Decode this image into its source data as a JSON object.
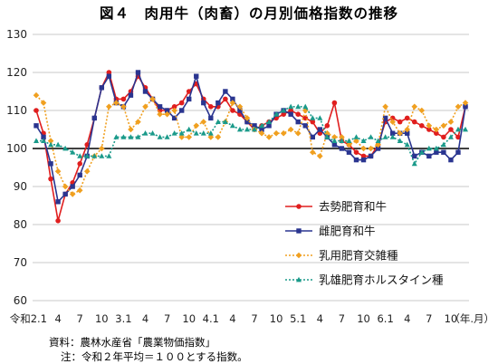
{
  "title": "図４　肉用牛（肉畜）の月別価格指数の推移",
  "source": "資料：農林水産省「農業物価指数」",
  "note": "注：令和２年平均＝１００とする指数。",
  "chart_data": {
    "type": "line",
    "title": "図４　肉用牛（肉畜）の月別価格指数の推移",
    "ylim": [
      60,
      130
    ],
    "yticks": [
      60,
      70,
      80,
      90,
      100,
      110,
      120,
      130
    ],
    "reference_line": 100,
    "x_unit_label": "（年.月）",
    "x_tick_labels": [
      "令和2.1",
      "4",
      "7",
      "10",
      "3.1",
      "4",
      "7",
      "10",
      "4.1",
      "4",
      "7",
      "10",
      "5.1",
      "4",
      "7",
      "10",
      "6.1",
      "4",
      "7",
      "10"
    ],
    "x": [
      "2.1",
      "2.2",
      "2.3",
      "2.4",
      "2.5",
      "2.6",
      "2.7",
      "2.8",
      "2.9",
      "2.10",
      "2.11",
      "2.12",
      "3.1",
      "3.2",
      "3.3",
      "3.4",
      "3.5",
      "3.6",
      "3.7",
      "3.8",
      "3.9",
      "3.10",
      "3.11",
      "3.12",
      "4.1",
      "4.2",
      "4.3",
      "4.4",
      "4.5",
      "4.6",
      "4.7",
      "4.8",
      "4.9",
      "4.10",
      "4.11",
      "4.12",
      "5.1",
      "5.2",
      "5.3",
      "5.4",
      "5.5",
      "5.6",
      "5.7",
      "5.8",
      "5.9",
      "5.10",
      "5.11",
      "5.12",
      "6.1",
      "6.2",
      "6.3",
      "6.4",
      "6.5",
      "6.6",
      "6.7",
      "6.8",
      "6.9",
      "6.10",
      "6.11",
      "6.12"
    ],
    "grid": true,
    "legend_position": "bottom-right",
    "series": [
      {
        "name": "去勢肥育和牛",
        "color": "#e01e1e",
        "marker": "circle",
        "line": "solid",
        "values": [
          110,
          104,
          92,
          81,
          88,
          91,
          96,
          101,
          108,
          116,
          120,
          113,
          113,
          115,
          119,
          116,
          113,
          110,
          110,
          111,
          112,
          115,
          117,
          113,
          111,
          111,
          113,
          110,
          109,
          107,
          105,
          106,
          107,
          108,
          109,
          110,
          109,
          108,
          107,
          104,
          106,
          112,
          102,
          101,
          99,
          98,
          98,
          101,
          107,
          108,
          107,
          108,
          107,
          106,
          105,
          104,
          103,
          105,
          103,
          111
        ]
      },
      {
        "name": "雌肥育和牛",
        "color": "#2a3590",
        "marker": "square",
        "line": "solid",
        "values": [
          106,
          103,
          96,
          86,
          88,
          90,
          93,
          98,
          108,
          116,
          119,
          112,
          111,
          114,
          120,
          115,
          113,
          111,
          110,
          108,
          110,
          113,
          119,
          112,
          108,
          112,
          115,
          113,
          110,
          107,
          106,
          105,
          106,
          109,
          110,
          109,
          107,
          106,
          103,
          105,
          103,
          101,
          100,
          99,
          97,
          97,
          98,
          100,
          108,
          104,
          104,
          104,
          98,
          99,
          98,
          99,
          99,
          97,
          99,
          111
        ]
      },
      {
        "name": "乳用肥育交雑種",
        "color": "#f0a020",
        "marker": "diamond",
        "line": "dotted",
        "values": [
          114,
          112,
          102,
          94,
          90,
          88,
          89,
          94,
          98,
          100,
          111,
          112,
          111,
          105,
          107,
          111,
          113,
          109,
          109,
          110,
          103,
          103,
          106,
          107,
          103,
          103,
          107,
          112,
          111,
          108,
          105,
          104,
          103,
          104,
          104,
          105,
          104,
          110,
          99,
          98,
          104,
          103,
          103,
          101,
          102,
          100,
          100,
          101,
          111,
          107,
          104,
          105,
          111,
          110,
          106,
          105,
          106,
          107,
          111,
          112
        ]
      },
      {
        "name": "乳雄肥育ホルスタイン種",
        "color": "#1a9a8a",
        "marker": "triangle",
        "line": "dotted",
        "values": [
          102,
          102,
          101,
          101,
          100,
          99,
          98,
          98,
          98,
          98,
          98,
          103,
          103,
          103,
          103,
          104,
          104,
          103,
          103,
          104,
          104,
          105,
          104,
          104,
          104,
          107,
          107,
          106,
          105,
          105,
          105,
          106,
          107,
          109,
          110,
          111,
          111,
          111,
          108,
          108,
          103,
          102,
          102,
          102,
          103,
          102,
          103,
          102,
          103,
          103,
          102,
          101,
          96,
          99,
          100,
          100,
          101,
          103,
          105,
          105
        ]
      }
    ]
  }
}
